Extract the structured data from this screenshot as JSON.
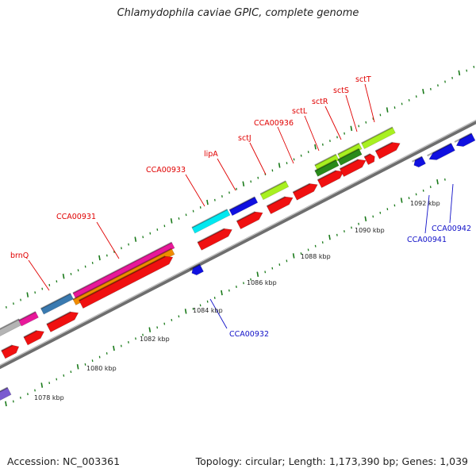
{
  "title": "Chlamydophila caviae GPIC, complete genome",
  "footer": {
    "accession": "Accession: NC_003361",
    "stats": "Topology: circular; Length: 1,173,390 bp; Genes: 1,039"
  },
  "colors": {
    "backbone": "#7a7a7a",
    "tick": "#1a7a1a",
    "forward_label": "#e00000",
    "reverse_label": "#1010c8",
    "kbp_label": "#222222"
  },
  "kbp_labels": [
    "1078 kbp",
    "1080 kbp",
    "1082 kbp",
    "1084 kbp",
    "1086 kbp",
    "1088 kbp",
    "1090 kbp",
    "1092 kbp"
  ],
  "forward_gene_labels": [
    "brnQ",
    "CCA00931",
    "CCA00933",
    "lipA",
    "sctJ",
    "CCA00936",
    "sctL",
    "sctR",
    "sctS",
    "sctT"
  ],
  "reverse_gene_labels": [
    "CCA00932",
    "CCA00941",
    "CCA00942"
  ]
}
